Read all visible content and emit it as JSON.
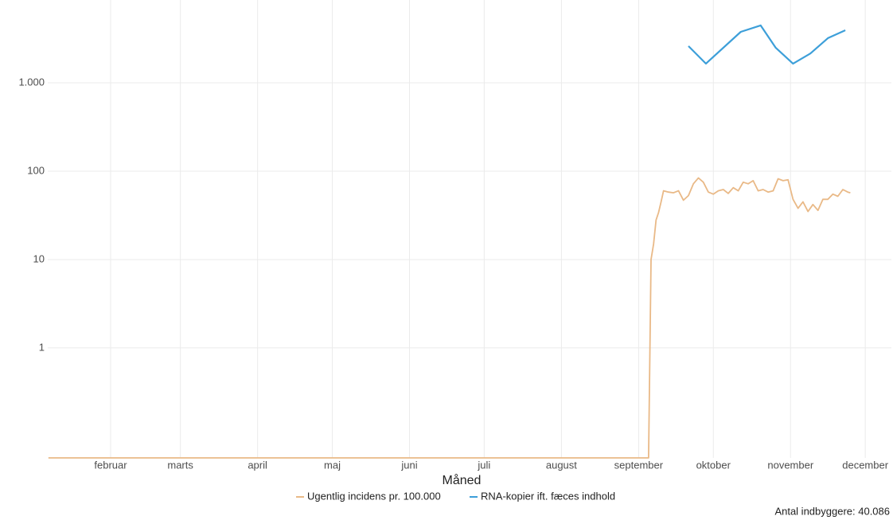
{
  "chart_data": {
    "type": "line",
    "x_label": "Måned",
    "caption": "Antal indbyggere: 40.086",
    "log_y": true,
    "grid": true,
    "legend": "bottom",
    "xlim": [
      6.75,
      345.5
    ],
    "xticks": [
      {
        "value": 32,
        "label": "februar"
      },
      {
        "value": 60,
        "label": "marts"
      },
      {
        "value": 91,
        "label": "april"
      },
      {
        "value": 121,
        "label": "maj"
      },
      {
        "value": 152,
        "label": "juni"
      },
      {
        "value": 182,
        "label": "juli"
      },
      {
        "value": 213,
        "label": "august"
      },
      {
        "value": 244,
        "label": "september"
      },
      {
        "value": 274,
        "label": "oktober"
      },
      {
        "value": 305,
        "label": "november"
      },
      {
        "value": 335,
        "label": "december"
      }
    ],
    "ylim": [
      0.057,
      8650
    ],
    "yticks": [
      1,
      10,
      100,
      {
        "value": 1000,
        "label": "1.000"
      }
    ],
    "series": [
      {
        "name": "Ugentlig incidens pr. 100.000",
        "color": "#e9b987",
        "x": [
          7,
          248,
          249,
          250,
          251,
          252,
          253,
          254,
          256,
          258,
          260,
          262,
          264,
          266,
          268,
          270,
          272,
          274,
          276,
          278,
          280,
          282,
          284,
          286,
          288,
          290,
          292,
          294,
          296,
          298,
          300,
          302,
          304,
          306,
          308,
          310,
          312,
          314,
          316,
          318,
          320,
          322,
          324,
          326,
          328,
          329
        ],
        "values": [
          0,
          0,
          10,
          15,
          28,
          34,
          45,
          60,
          58,
          57,
          60,
          47,
          53,
          72,
          84,
          75,
          58,
          55,
          60,
          62,
          56,
          65,
          60,
          75,
          72,
          78,
          60,
          62,
          58,
          60,
          82,
          78,
          80,
          48,
          38,
          45,
          35,
          42,
          36,
          48,
          48,
          55,
          52,
          62,
          58,
          57
        ]
      },
      {
        "name": "RNA-kopier ift. fæces indhold",
        "color": "#3d9fd9",
        "x": [
          264,
          271,
          285,
          293,
          299,
          306,
          313,
          320,
          327
        ],
        "values": [
          2600,
          1650,
          3770,
          4460,
          2500,
          1650,
          2150,
          3200,
          3930
        ]
      }
    ]
  }
}
